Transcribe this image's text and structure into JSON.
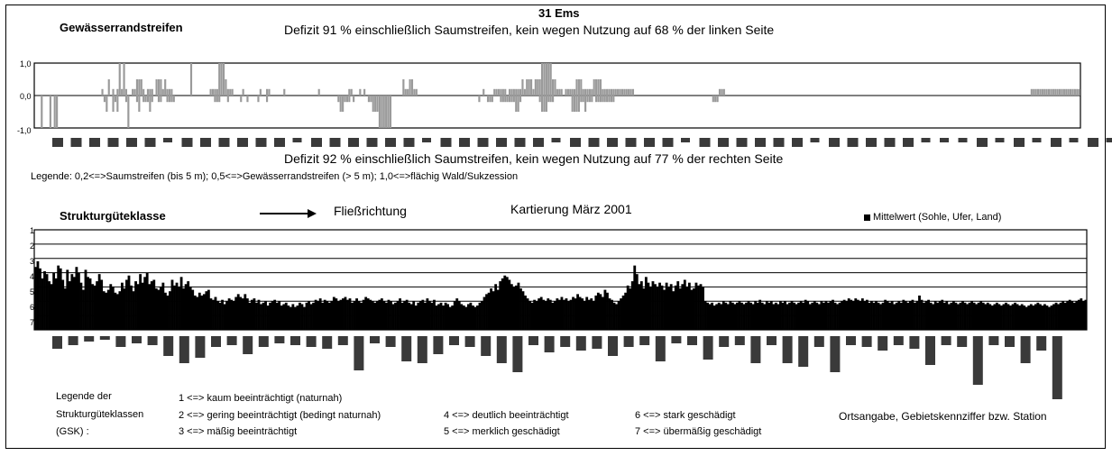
{
  "header": {
    "title": "31 Ems",
    "section1_title": "Gewässerrandstreifen",
    "deficit_left": "Defizit 91 % einschließlich Saumstreifen, kein wegen Nutzung auf 68 % der linken Seite",
    "deficit_right": "Defizit 92 % einschließlich Saumstreifen, kein wegen Nutzung auf 77 % der rechten Seite",
    "legend1": "Legende:   0,2<=>Saumstreifen  (bis 5 m);  0,5<=>Gewässerrandstreifen (> 5 m);  1,0<=>flächig Wald/Sukzession",
    "section2_title": "Strukturgüteklasse",
    "flow_label": "Fließrichtung",
    "mapping_label": "Kartierung März 2001",
    "mean_legend": "Mittelwert (Sohle, Ufer, Land)"
  },
  "gsk_legend": {
    "title_lines": [
      "Legende der",
      "Strukturgüteklassen",
      "(GSK) :"
    ],
    "items": [
      "1 <=> kaum beeinträchtigt (naturnah)",
      "2 <=> gering beeinträchtigt (bedingt naturnah)",
      "3 <=> mäßig beeinträchtigt",
      "4 <=> deutlich beeinträchtigt",
      "5 <=> merklich geschädigt",
      "6 <=> stark geschädigt",
      "7 <=> übermäßig geschädigt"
    ],
    "location_label": "Ortsangabe, Gebietskennziffer bzw. Station"
  },
  "colors": {
    "bar_gray": "#9a9a9a",
    "bar_black": "#000000",
    "label_box": "#3a3a3a"
  },
  "chart_data": [
    {
      "type": "bar",
      "name_ref": "Gewässerrandstreifen",
      "ylim": [
        -1.0,
        1.0
      ],
      "yticks": [
        "1,0",
        "0,0",
        "-1,0"
      ],
      "note": "left side positive, right side negative",
      "left_values": [
        0,
        0,
        0,
        0,
        0,
        0,
        0,
        0,
        0,
        0,
        0,
        0,
        0,
        0,
        0,
        0,
        0,
        0,
        0,
        0,
        0,
        0,
        0,
        0,
        0,
        0,
        0,
        0,
        0,
        0,
        0,
        0.2,
        0,
        0,
        0.5,
        0,
        0.2,
        0,
        0.2,
        1.0,
        0.2,
        1.0,
        0.2,
        0,
        0,
        0.2,
        0.2,
        0.5,
        0.5,
        0.5,
        0.2,
        0,
        0.2,
        0.2,
        0.2,
        0,
        0.5,
        0.5,
        0.5,
        0.2,
        0.5,
        0.2,
        0.2,
        0.2,
        0,
        0,
        0,
        0,
        0,
        0,
        0,
        0,
        1.0,
        0,
        0,
        0,
        0,
        0,
        0,
        0,
        0,
        0.2,
        0.2,
        0.2,
        0.2,
        1.0,
        1.0,
        1.0,
        0.5,
        0.2,
        0.2,
        0.2,
        0,
        0,
        0,
        0,
        0.2,
        0,
        0,
        0,
        0,
        0,
        0,
        0,
        0.2,
        0,
        0,
        0.2,
        0.2,
        0,
        0,
        0,
        0,
        0,
        0,
        0.2,
        0,
        0,
        0,
        0,
        0,
        0,
        0,
        0,
        0,
        0,
        0,
        0,
        0,
        0,
        0,
        0.2,
        0,
        0,
        0,
        0,
        0,
        0,
        0,
        0,
        0,
        0,
        0,
        0,
        0,
        0.2,
        0.2,
        0,
        0,
        0,
        0.2,
        0,
        0.2,
        0,
        0,
        0,
        0,
        0,
        0,
        0,
        0,
        0,
        0,
        0,
        0,
        0,
        0,
        0,
        0,
        0,
        0.5,
        0.2,
        0.2,
        0.5,
        0.5,
        0.2,
        0.2,
        0,
        0,
        0,
        0,
        0,
        0,
        0,
        0,
        0,
        0,
        0,
        0,
        0,
        0,
        0,
        0,
        0,
        0,
        0,
        0,
        0,
        0,
        0,
        0,
        0,
        0,
        0,
        0,
        0,
        0,
        0.2,
        0,
        0,
        0,
        0,
        0.2,
        0.2,
        0.2,
        0.2,
        0.2,
        0.2,
        0,
        0.2,
        0.2,
        0.2,
        0.2,
        0.2,
        0.2,
        0.5,
        0.2,
        0.5,
        0.5,
        0.5,
        0.2,
        0.5,
        0.5,
        0.5,
        1.0,
        1.0,
        1.0,
        1.0,
        1.0,
        0.5,
        0.5,
        0.2,
        0.2,
        0.2,
        0,
        0.2,
        0.2,
        0.2,
        0.2,
        0.2,
        0.5,
        0.5,
        0.5,
        0.2,
        0.2,
        0.2,
        0.2,
        0.2,
        0.5,
        0.5,
        0.5,
        0.5,
        0.2,
        0.2,
        0.2,
        0.2,
        0.2,
        0.2,
        0.2,
        0.2,
        0.2,
        0.2,
        0.2,
        0.2,
        0.2,
        0.2,
        0.2,
        0,
        0,
        0,
        0,
        0,
        0,
        0,
        0,
        0,
        0,
        0,
        0,
        0,
        0,
        0,
        0,
        0,
        0,
        0,
        0,
        0,
        0,
        0,
        0,
        0,
        0,
        0,
        0,
        0,
        0,
        0,
        0,
        0,
        0,
        0,
        0,
        0,
        0,
        0,
        0.2,
        0.2,
        0.2,
        0,
        0,
        0,
        0,
        0,
        0,
        0,
        0,
        0,
        0,
        0,
        0,
        0,
        0,
        0,
        0,
        0,
        0,
        0,
        0,
        0,
        0,
        0,
        0,
        0,
        0,
        0,
        0,
        0,
        0,
        0,
        0,
        0,
        0,
        0,
        0,
        0,
        0,
        0,
        0,
        0,
        0,
        0,
        0,
        0,
        0,
        0,
        0,
        0,
        0,
        0,
        0,
        0,
        0,
        0,
        0,
        0,
        0,
        0,
        0,
        0,
        0,
        0,
        0,
        0,
        0,
        0,
        0,
        0,
        0,
        0,
        0,
        0,
        0,
        0,
        0,
        0,
        0,
        0,
        0,
        0,
        0,
        0,
        0,
        0,
        0,
        0,
        0,
        0,
        0,
        0,
        0,
        0,
        0,
        0,
        0,
        0,
        0,
        0,
        0,
        0,
        0,
        0,
        0,
        0,
        0,
        0,
        0,
        0,
        0,
        0,
        0,
        0,
        0,
        0,
        0,
        0,
        0,
        0,
        0,
        0,
        0,
        0,
        0,
        0,
        0,
        0,
        0,
        0,
        0,
        0,
        0,
        0,
        0,
        0,
        0,
        0,
        0,
        0,
        0,
        0,
        0.2,
        0.2,
        0.2,
        0.2,
        0.2,
        0.2,
        0.2,
        0.2,
        0.2,
        0.2,
        0.2,
        0.2,
        0.2,
        0.2,
        0.2,
        0.2,
        0.2,
        0.2,
        0.2,
        0.2,
        0.2,
        0.2,
        0.2
      ],
      "right_values": [
        0,
        0,
        0,
        1.0,
        0,
        0,
        0,
        1.0,
        0,
        1.0,
        1.0,
        0,
        0,
        0,
        0,
        0,
        0,
        0,
        0,
        0,
        0,
        0,
        0,
        0,
        0,
        0,
        0,
        0,
        0,
        0,
        0,
        0,
        0.2,
        0.5,
        0,
        0,
        0.5,
        0.2,
        0.5,
        0,
        0,
        0,
        0.2,
        1.0,
        0,
        0,
        0,
        0.2,
        0.5,
        0,
        0.2,
        0.2,
        0.2,
        0.5,
        0.2,
        0,
        0,
        0.2,
        0.2,
        0,
        0,
        0.2,
        0.2,
        0.2,
        0.2,
        0,
        0,
        0,
        0,
        0,
        0,
        0,
        0,
        0,
        0,
        0,
        0,
        0,
        0,
        0,
        0,
        0,
        0,
        0.2,
        0.2,
        0.2,
        0,
        0,
        0,
        0.2,
        0,
        0,
        0,
        0,
        0,
        0.2,
        0,
        0,
        0.2,
        0,
        0,
        0,
        0,
        0.2,
        0,
        0,
        0,
        0.2,
        0,
        0,
        0,
        0,
        0,
        0,
        0,
        0,
        0,
        0,
        0,
        0,
        0,
        0,
        0,
        0,
        0,
        0,
        0,
        0,
        0,
        0,
        0,
        0,
        0,
        0,
        0,
        0,
        0,
        0,
        0,
        0,
        0.2,
        0.5,
        0.5,
        0.2,
        0.2,
        0.2,
        0,
        0.2,
        0,
        0,
        0,
        0,
        0,
        0,
        0.2,
        0.2,
        0.5,
        0.5,
        0.5,
        1.0,
        1.0,
        1.0,
        1.0,
        1.0,
        1.0,
        0,
        0,
        0,
        0,
        0,
        0,
        0,
        0,
        0,
        0,
        0,
        0,
        0,
        0,
        0,
        0,
        0,
        0,
        0,
        0,
        0,
        0,
        0,
        0,
        0,
        0,
        0,
        0,
        0,
        0,
        0,
        0,
        0,
        0,
        0,
        0,
        0,
        0,
        0,
        0,
        0.2,
        0,
        0,
        0,
        0.2,
        0.2,
        0.2,
        0,
        0,
        0,
        0.2,
        0.2,
        0.2,
        0.2,
        0.2,
        0.2,
        0.2,
        0.5,
        0.5,
        0.2,
        0,
        0,
        0,
        0,
        0,
        0,
        0,
        0,
        0.2,
        0.5,
        0.5,
        0.5,
        0.2,
        0.2,
        0.2,
        0,
        0,
        0,
        0,
        0,
        0,
        0,
        0,
        0.5,
        0.5,
        0.5,
        0.5,
        0.2,
        0.2,
        0.5,
        0.2,
        0.2,
        0.2,
        0,
        0.2,
        0.2,
        0.2,
        0.2,
        0.2,
        0.2,
        0.2,
        0.2,
        0.2,
        0,
        0,
        0,
        0,
        0,
        0,
        0,
        0,
        0,
        0,
        0,
        0,
        0,
        0,
        0,
        0,
        0,
        0,
        0,
        0,
        0,
        0,
        0,
        0,
        0,
        0,
        0,
        0,
        0,
        0,
        0,
        0,
        0,
        0,
        0,
        0,
        0,
        0,
        0,
        0,
        0,
        0,
        0,
        0,
        0,
        0.2,
        0.2,
        0.2,
        0,
        0,
        0,
        0,
        0,
        0,
        0,
        0,
        0,
        0,
        0,
        0,
        0,
        0,
        0,
        0,
        0,
        0,
        0,
        0,
        0,
        0,
        0,
        0,
        0,
        0,
        0,
        0,
        0,
        0,
        0,
        0,
        0,
        0,
        0,
        0,
        0,
        0,
        0,
        0,
        0,
        0,
        0,
        0,
        0,
        0,
        0,
        0,
        0,
        0,
        0,
        0,
        0,
        0,
        0,
        0,
        0,
        0,
        0,
        0,
        0,
        0,
        0,
        0,
        0,
        0,
        0,
        0,
        0,
        0,
        0,
        0,
        0,
        0,
        0,
        0,
        0,
        0,
        0,
        0,
        0,
        0,
        0,
        0,
        0,
        0,
        0,
        0,
        0,
        0,
        0,
        0,
        0,
        0,
        0,
        0,
        0,
        0,
        0,
        0,
        0,
        0,
        0,
        0,
        0,
        0,
        0,
        0,
        0,
        0,
        0,
        0,
        0,
        0,
        0,
        0,
        0,
        0,
        0,
        0,
        0,
        0,
        0,
        0,
        0,
        0,
        0,
        0,
        0,
        0,
        0,
        0,
        0,
        0,
        0,
        0,
        0,
        0,
        0,
        0,
        0,
        0,
        0,
        0,
        0,
        0,
        0,
        0,
        0,
        0,
        0,
        0,
        0,
        0,
        0,
        0,
        0,
        0,
        0,
        0,
        0,
        0,
        0,
        0,
        0,
        0,
        0
      ]
    },
    {
      "type": "bar",
      "name_ref": "Strukturgüteklasse",
      "ylim": [
        1,
        7
      ],
      "yticks": [
        "1",
        "2",
        "3",
        "4",
        "5",
        "6",
        "7"
      ],
      "inverted": true,
      "series_legend": "Mittelwert (Sohle, Ufer, Land)",
      "values": [
        3.1,
        2.7,
        3.2,
        3.9,
        3.4,
        3.6,
        4.1,
        4.3,
        3.5,
        3.9,
        3.0,
        3.2,
        4.0,
        4.6,
        3.3,
        4.1,
        3.6,
        3.8,
        3.1,
        3.5,
        4.2,
        4.7,
        3.3,
        3.8,
        3.9,
        4.3,
        4.4,
        4.1,
        3.6,
        4.0,
        4.8,
        4.9,
        4.7,
        4.3,
        4.5,
        4.9,
        5.0,
        4.8,
        4.2,
        4.6,
        4.0,
        3.7,
        4.4,
        4.8,
        4.1,
        4.3,
        3.6,
        4.2,
        3.8,
        3.5,
        4.3,
        4.1,
        4.0,
        4.6,
        4.7,
        4.5,
        4.2,
        4.9,
        5.1,
        4.8,
        4.0,
        4.4,
        4.2,
        4.5,
        3.8,
        4.6,
        4.3,
        4.1,
        4.5,
        4.7,
        5.1,
        5.2,
        4.9,
        5.1,
        5.0,
        4.8,
        4.7,
        5.3,
        5.4,
        5.2,
        5.5,
        5.6,
        5.4,
        5.7,
        5.5,
        5.3,
        5.4,
        5.5,
        5.2,
        5.0,
        5.2,
        5.3,
        5.0,
        5.3,
        5.6,
        5.4,
        5.3,
        5.6,
        5.4,
        5.7,
        5.6,
        5.5,
        5.8,
        5.6,
        5.5,
        5.4,
        5.6,
        5.5,
        5.8,
        5.7,
        5.6,
        5.8,
        5.9,
        5.7,
        5.9,
        5.8,
        5.6,
        5.7,
        5.9,
        5.6,
        5.5,
        5.7,
        5.6,
        5.4,
        5.5,
        5.3,
        5.6,
        5.4,
        5.5,
        5.6,
        5.5,
        5.2,
        5.3,
        5.5,
        5.4,
        5.3,
        5.2,
        5.4,
        5.3,
        5.6,
        5.5,
        5.3,
        5.5,
        5.6,
        5.4,
        5.2,
        5.3,
        5.4,
        5.5,
        5.6,
        5.5,
        5.4,
        5.3,
        5.5,
        5.6,
        5.4,
        5.5,
        5.7,
        5.6,
        5.5,
        5.3,
        5.6,
        5.5,
        5.4,
        5.6,
        5.7,
        5.5,
        5.8,
        5.6,
        5.5,
        5.4,
        5.6,
        5.3,
        5.5,
        5.6,
        5.4,
        5.8,
        5.7,
        5.6,
        5.8,
        5.6,
        5.7,
        5.9,
        5.8,
        5.5,
        5.3,
        5.5,
        5.7,
        5.8,
        5.9,
        5.7,
        5.6,
        5.8,
        5.9,
        5.8,
        5.6,
        5.5,
        5.2,
        5.0,
        4.9,
        4.6,
        4.8,
        4.3,
        4.7,
        4.1,
        3.9,
        3.7,
        3.8,
        4.0,
        4.3,
        4.5,
        4.4,
        4.2,
        4.6,
        4.8,
        5.1,
        5.3,
        5.5,
        5.6,
        5.4,
        5.5,
        5.3,
        5.2,
        5.4,
        5.5,
        5.3,
        5.4,
        5.6,
        5.5,
        5.3,
        5.4,
        5.2,
        5.4,
        5.3,
        5.5,
        5.4,
        5.2,
        5.3,
        5.0,
        5.2,
        5.3,
        5.5,
        5.2,
        5.4,
        5.3,
        5.5,
        5.1,
        4.9,
        5.0,
        5.2,
        4.7,
        4.9,
        5.3,
        5.4,
        5.6,
        5.7,
        5.5,
        5.3,
        5.1,
        4.9,
        4.4,
        4.6,
        4.1,
        3.0,
        3.6,
        4.3,
        4.1,
        4.6,
        3.8,
        4.2,
        4.5,
        4.1,
        4.3,
        4.5,
        4.2,
        4.4,
        4.7,
        4.2,
        4.5,
        4.3,
        4.8,
        4.4,
        4.1,
        4.6,
        4.3,
        4.0,
        4.5,
        4.2,
        4.7,
        4.6,
        4.2,
        4.4,
        4.3,
        4.5,
        5.5,
        5.6,
        5.7,
        5.6,
        5.8,
        5.7,
        5.6,
        5.7,
        5.5,
        5.6,
        5.7,
        5.5,
        5.6,
        5.7,
        5.6,
        5.5,
        5.6,
        5.7,
        5.6,
        5.5,
        5.6,
        5.7,
        5.5,
        5.6,
        5.4,
        5.6,
        5.7,
        5.5,
        5.6,
        5.5,
        5.7,
        5.6,
        5.7,
        5.5,
        5.6,
        5.5,
        5.7,
        5.6,
        5.5,
        5.6,
        5.7,
        5.6,
        5.5,
        5.6,
        5.4,
        5.5,
        5.7,
        5.6,
        5.5,
        5.6,
        5.7,
        5.5,
        5.6,
        5.5,
        5.6,
        5.5,
        5.4,
        5.6,
        5.7,
        5.6,
        5.5,
        5.4,
        5.5,
        5.3,
        5.4,
        5.5,
        5.3,
        5.4,
        5.5,
        5.3,
        5.5,
        5.4,
        5.6,
        5.5,
        5.6,
        5.5,
        5.6,
        5.7,
        5.6,
        5.4,
        5.5,
        5.6,
        5.5,
        5.7,
        5.6,
        5.5,
        5.6,
        5.4,
        5.5,
        5.6,
        5.5,
        5.4,
        5.6,
        5.5,
        5.1,
        5.4,
        5.6,
        5.5,
        5.4,
        5.6,
        5.7,
        5.5,
        5.6,
        5.5,
        5.4,
        5.6,
        5.5,
        5.7,
        5.6,
        5.5,
        5.6,
        5.7,
        5.6,
        5.5,
        5.6,
        5.7,
        5.6,
        5.5,
        5.6,
        5.7,
        5.6,
        5.5,
        5.6,
        5.7,
        5.6,
        5.7,
        5.8,
        5.7,
        5.6,
        5.7,
        5.8,
        5.7,
        5.6,
        5.7,
        5.8,
        5.7,
        5.6,
        5.7,
        5.8,
        5.7,
        5.8,
        5.9,
        5.8,
        5.7,
        5.8,
        5.7,
        5.6,
        5.7,
        5.8,
        5.7,
        5.8,
        5.9,
        5.8,
        5.7,
        5.6,
        5.7,
        5.6,
        5.5,
        5.6,
        5.5,
        5.4,
        5.5,
        5.6,
        5.5,
        5.4,
        5.3,
        5.5,
        5.4
      ]
    }
  ]
}
